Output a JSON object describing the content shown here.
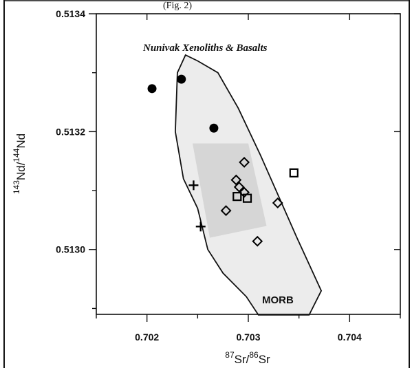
{
  "chart_data": {
    "type": "scatter",
    "title": "Nunivak Xenoliths & Basalts",
    "top_caption": "(Fig. 2)",
    "xlabel": {
      "sup1": "87",
      "base1": "Sr/",
      "sup2": "86",
      "base2": "Sr"
    },
    "ylabel": {
      "sup1": "143",
      "base1": "Nd/",
      "sup2": "144",
      "base2": "Nd"
    },
    "xlim": [
      0.7015,
      0.7045
    ],
    "ylim": [
      0.51289,
      0.5134
    ],
    "x_ticks": [
      "0.702",
      "0.703",
      "0.704"
    ],
    "x_tick_values": [
      0.702,
      0.703,
      0.704
    ],
    "y_ticks": [
      "0.5130",
      "0.5132",
      "0.5134"
    ],
    "y_tick_values": [
      0.513,
      0.5132,
      0.5134
    ],
    "grid": false,
    "region_label": "MORB",
    "series": [
      {
        "marker": "filled-circle",
        "points": [
          [
            0.70205,
            0.513273
          ],
          [
            0.70234,
            0.513289
          ],
          [
            0.70266,
            0.513206
          ]
        ]
      },
      {
        "marker": "open-diamond",
        "points": [
          [
            0.70296,
            0.513148
          ],
          [
            0.70288,
            0.513118
          ],
          [
            0.70291,
            0.513106
          ],
          [
            0.70296,
            0.513097
          ],
          [
            0.70278,
            0.513066
          ],
          [
            0.70329,
            0.513079
          ],
          [
            0.70309,
            0.513014
          ]
        ]
      },
      {
        "marker": "open-square",
        "points": [
          [
            0.70345,
            0.51313
          ],
          [
            0.70289,
            0.51309
          ],
          [
            0.70299,
            0.513087
          ]
        ]
      },
      {
        "marker": "plus",
        "points": [
          [
            0.70246,
            0.513109
          ],
          [
            0.70253,
            0.513039
          ]
        ]
      }
    ],
    "morb_outline": [
      [
        0.7031,
        0.512889
      ],
      [
        0.7036,
        0.512889
      ],
      [
        0.70372,
        0.51293
      ],
      [
        0.70348,
        0.51302
      ],
      [
        0.70312,
        0.51316
      ],
      [
        0.7029,
        0.51324
      ],
      [
        0.7027,
        0.5133
      ],
      [
        0.7025,
        0.51332
      ],
      [
        0.70238,
        0.51333
      ],
      [
        0.7023,
        0.5133
      ],
      [
        0.70228,
        0.5132
      ],
      [
        0.70236,
        0.51312
      ],
      [
        0.7025,
        0.51307
      ],
      [
        0.7026,
        0.513
      ],
      [
        0.70275,
        0.51296
      ],
      [
        0.70298,
        0.51292
      ],
      [
        0.7031,
        0.512889
      ]
    ]
  }
}
